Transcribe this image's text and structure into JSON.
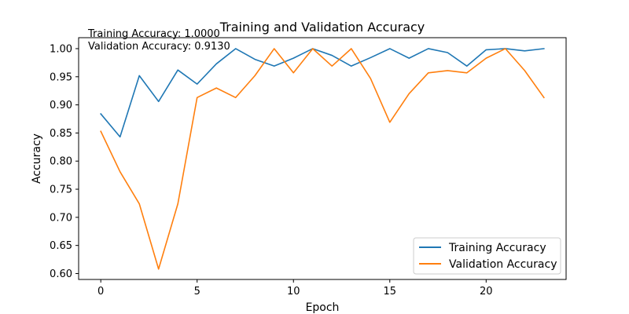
{
  "chart_data": {
    "type": "line",
    "title": "Training and Validation Accuracy",
    "xlabel": "Epoch",
    "ylabel": "Accuracy",
    "x": [
      0,
      1,
      2,
      3,
      4,
      5,
      6,
      7,
      8,
      9,
      10,
      11,
      12,
      13,
      14,
      15,
      16,
      17,
      18,
      19,
      20,
      21,
      22,
      23
    ],
    "xlim": [
      -1.15,
      24.15
    ],
    "ylim": [
      0.5895,
      1.0195
    ],
    "xticks": [
      0,
      5,
      10,
      15,
      20
    ],
    "yticks": [
      0.6,
      0.65,
      0.7,
      0.75,
      0.8,
      0.85,
      0.9,
      0.95,
      1.0
    ],
    "ytick_format": 2,
    "grid": false,
    "legend_position": "lower right",
    "series": [
      {
        "name": "Training Accuracy",
        "color": "#1f77b4",
        "values": [
          0.884,
          0.843,
          0.952,
          0.906,
          0.962,
          0.937,
          0.973,
          1.0,
          0.981,
          0.969,
          0.983,
          1.0,
          0.988,
          0.969,
          0.984,
          1.0,
          0.983,
          1.0,
          0.993,
          0.969,
          0.998,
          1.0,
          0.996,
          1.0
        ]
      },
      {
        "name": "Validation Accuracy",
        "color": "#ff7f0e",
        "values": [
          0.853,
          0.781,
          0.724,
          0.608,
          0.724,
          0.913,
          0.93,
          0.913,
          0.952,
          1.0,
          0.957,
          1.0,
          0.969,
          1.0,
          0.947,
          0.869,
          0.92,
          0.957,
          0.961,
          0.957,
          0.983,
          1.0,
          0.961,
          0.913
        ]
      }
    ],
    "annotations": [
      "Training Accuracy: 1.0000",
      "Validation Accuracy: 0.9130"
    ]
  }
}
